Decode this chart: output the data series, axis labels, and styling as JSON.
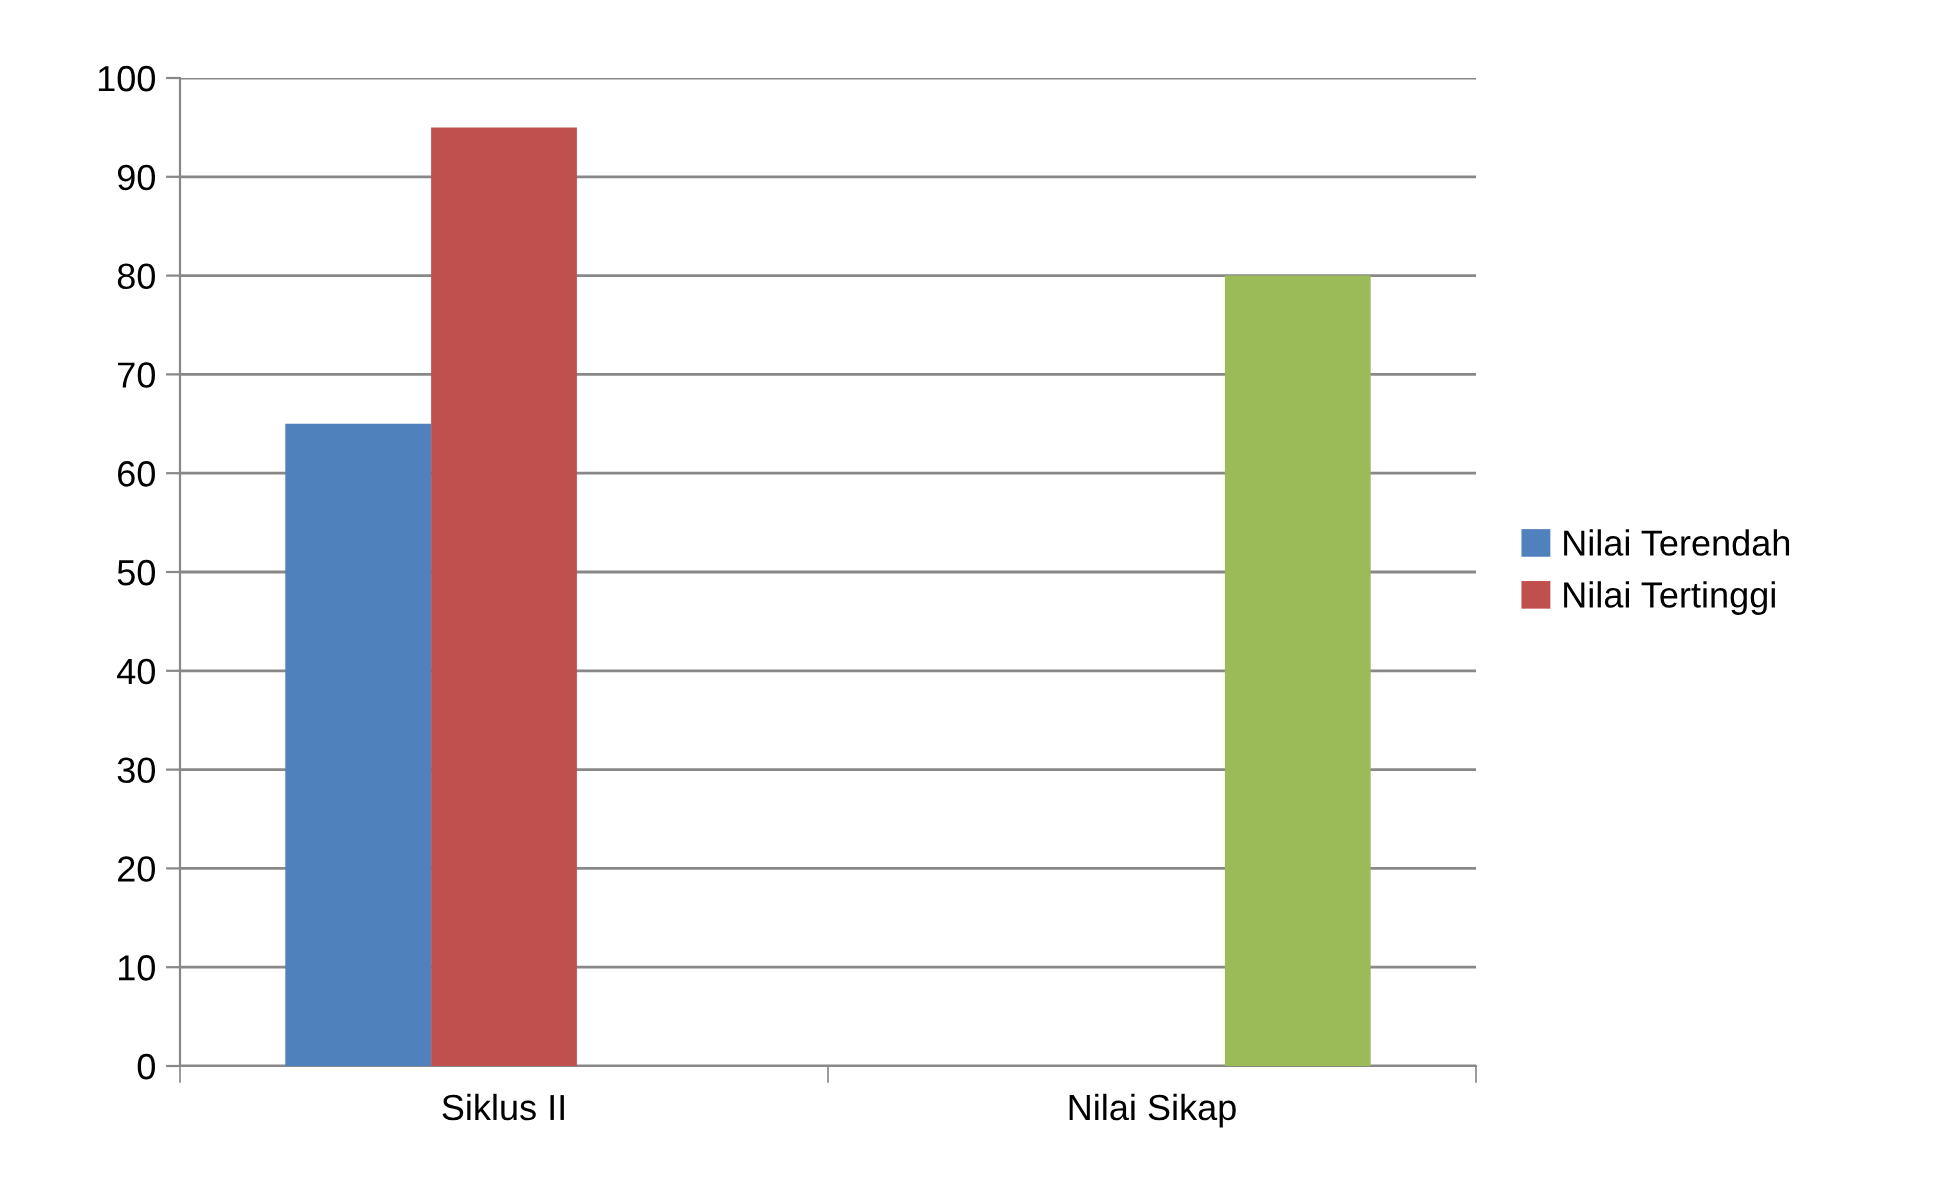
{
  "chart_data": {
    "type": "bar",
    "categories": [
      "Siklus II",
      "Nilai Sikap"
    ],
    "series": [
      {
        "name": "Nilai Terendah",
        "color": "#4f81bd",
        "values": [
          65,
          null
        ]
      },
      {
        "name": "Nilai Tertinggi",
        "color": "#c0504d",
        "values": [
          95,
          null
        ]
      },
      {
        "color": "#9bbb59",
        "values": [
          null,
          80
        ]
      }
    ],
    "ylim": [
      0,
      100
    ],
    "yticks": [
      0,
      10,
      20,
      30,
      40,
      50,
      60,
      70,
      80,
      90,
      100
    ],
    "grid": "y",
    "legend": "right"
  }
}
